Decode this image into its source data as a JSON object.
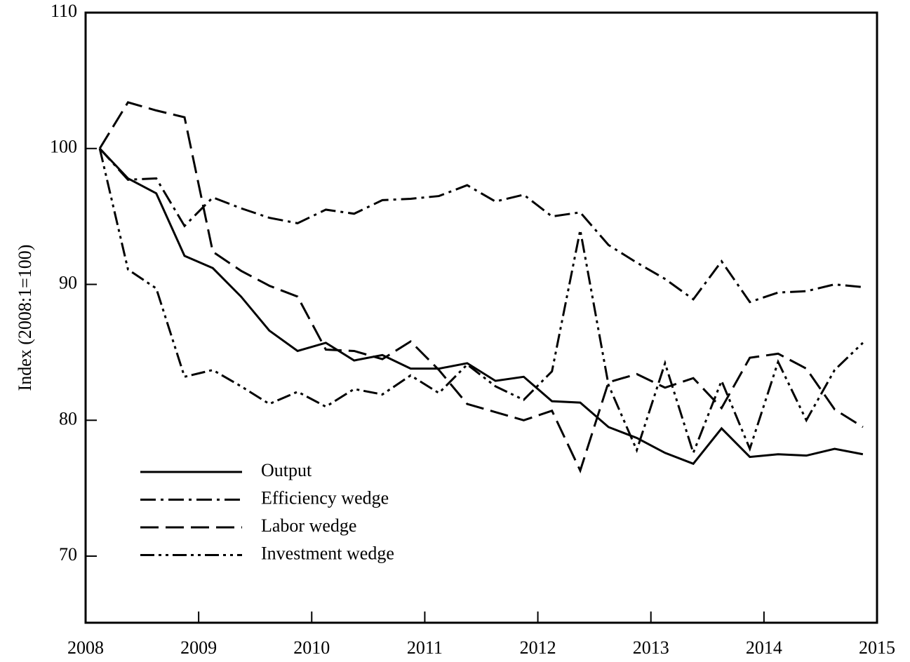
{
  "chart_data": {
    "type": "line",
    "y_label": "Index (2008:1=100)",
    "x": [
      2008.125,
      2008.375,
      2008.625,
      2008.875,
      2009.125,
      2009.375,
      2009.625,
      2009.875,
      2010.125,
      2010.375,
      2010.625,
      2010.875,
      2011.125,
      2011.375,
      2011.625,
      2011.875,
      2012.125,
      2012.375,
      2012.625,
      2012.875,
      2013.125,
      2013.375,
      2013.625,
      2013.875,
      2014.125,
      2014.375,
      2014.625,
      2014.875
    ],
    "series": [
      {
        "name": "Output",
        "color": "#000000",
        "dash": "solid",
        "values": [
          100,
          97.8,
          96.7,
          92.1,
          91.2,
          89.1,
          86.6,
          85.1,
          85.7,
          84.4,
          84.8,
          83.8,
          83.8,
          84.2,
          82.9,
          83.2,
          81.4,
          81.3,
          79.5,
          78.7,
          77.6,
          76.8,
          79.4,
          77.3,
          77.5,
          77.4,
          77.9,
          77.5
        ]
      },
      {
        "name": "Efficiency wedge",
        "color": "#000000",
        "dash": "dashdot",
        "values": [
          100,
          97.7,
          97.8,
          94.3,
          96.4,
          95.6,
          94.9,
          94.5,
          95.5,
          95.2,
          96.2,
          96.3,
          96.5,
          97.3,
          96.1,
          96.6,
          95.0,
          95.3,
          92.9,
          91.6,
          90.4,
          88.9,
          91.7,
          88.7,
          89.4,
          89.5,
          90.0,
          89.8
        ]
      },
      {
        "name": "Labor wedge",
        "color": "#000000",
        "dash": "dashed",
        "values": [
          100,
          103.4,
          102.8,
          102.3,
          92.4,
          91.0,
          89.9,
          89.1,
          85.2,
          85.1,
          84.5,
          85.8,
          83.7,
          81.2,
          80.6,
          80.0,
          80.7,
          76.3,
          82.8,
          83.4,
          82.4,
          83.1,
          80.9,
          84.6,
          84.9,
          83.8,
          80.8,
          79.5
        ]
      },
      {
        "name": "Investment wedge",
        "color": "#000000",
        "dash": "dashdotdot",
        "values": [
          100,
          91.1,
          89.7,
          83.2,
          83.7,
          82.5,
          81.2,
          82.1,
          81.0,
          82.3,
          81.9,
          83.3,
          82.0,
          84.1,
          82.5,
          81.5,
          83.6,
          94.0,
          82.6,
          77.8,
          84.2,
          77.6,
          82.9,
          77.9,
          84.3,
          80.0,
          83.7,
          85.7
        ]
      }
    ],
    "xlim": [
      2008,
      2015
    ],
    "xticks": [
      2008,
      2009,
      2010,
      2011,
      2012,
      2013,
      2014,
      2015
    ],
    "ylim": [
      65.1,
      110
    ],
    "yticks": [
      70,
      80,
      90,
      100,
      110
    ],
    "legend": "lower left"
  }
}
